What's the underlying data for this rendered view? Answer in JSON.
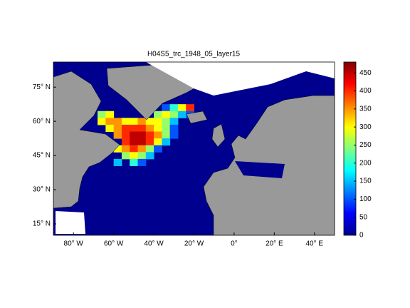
{
  "chart_data": {
    "type": "heatmap",
    "title": "H04S5_trc_1948_05_layer15",
    "xlim": [
      -90,
      50
    ],
    "xticks": [
      {
        "value": -80,
        "label": "80° W"
      },
      {
        "value": -60,
        "label": "60° W"
      },
      {
        "value": -40,
        "label": "40° W"
      },
      {
        "value": -20,
        "label": "20° W"
      },
      {
        "value": 0,
        "label": "0°"
      },
      {
        "value": 20,
        "label": "20° E"
      },
      {
        "value": 40,
        "label": "40° E"
      }
    ],
    "ylim": [
      10,
      86
    ],
    "yticks": [
      {
        "value": 15,
        "label": "15° N"
      },
      {
        "value": 30,
        "label": "30° N"
      },
      {
        "value": 45,
        "label": "45° N"
      },
      {
        "value": 60,
        "label": "60° N"
      },
      {
        "value": 75,
        "label": "75° N"
      }
    ],
    "colormap": "jet",
    "clim": [
      0,
      480
    ],
    "cticks": [
      0,
      50,
      100,
      150,
      200,
      250,
      300,
      350,
      400,
      450
    ],
    "cells": {
      "lon": [
        -34,
        -30,
        -26,
        -22,
        -66,
        -62,
        -38,
        -34,
        -30,
        -26,
        -22,
        -66,
        -62,
        -58,
        -54,
        -50,
        -46,
        -42,
        -38,
        -34,
        -30,
        -62,
        -58,
        -54,
        -50,
        -46,
        -42,
        -38,
        -34,
        -30,
        -58,
        -54,
        -50,
        -46,
        -42,
        -38,
        -34,
        -30,
        -54,
        -50,
        -46,
        -42,
        -38,
        -34,
        -58,
        -54,
        -50,
        -46,
        -42,
        -38,
        -54,
        -50,
        -46,
        -42,
        -58,
        -50,
        -46
      ],
      "lat": [
        66,
        66,
        66,
        66,
        63,
        63,
        63,
        63,
        63,
        63,
        63,
        60,
        60,
        60,
        60,
        60,
        60,
        60,
        60,
        60,
        60,
        57,
        57,
        57,
        57,
        57,
        57,
        57,
        57,
        57,
        54,
        54,
        54,
        54,
        54,
        54,
        54,
        54,
        51,
        51,
        51,
        51,
        51,
        51,
        48,
        48,
        48,
        48,
        48,
        48,
        45,
        45,
        45,
        45,
        42,
        42,
        42
      ],
      "values": [
        100,
        200,
        300,
        400,
        250,
        300,
        250,
        300,
        250,
        150,
        100,
        300,
        350,
        350,
        300,
        300,
        350,
        300,
        300,
        250,
        150,
        300,
        350,
        400,
        400,
        400,
        350,
        300,
        250,
        100,
        350,
        400,
        450,
        450,
        400,
        350,
        250,
        100,
        400,
        450,
        450,
        400,
        300,
        150,
        300,
        350,
        400,
        350,
        250,
        100,
        250,
        300,
        250,
        150,
        150,
        200,
        100
      ]
    }
  }
}
